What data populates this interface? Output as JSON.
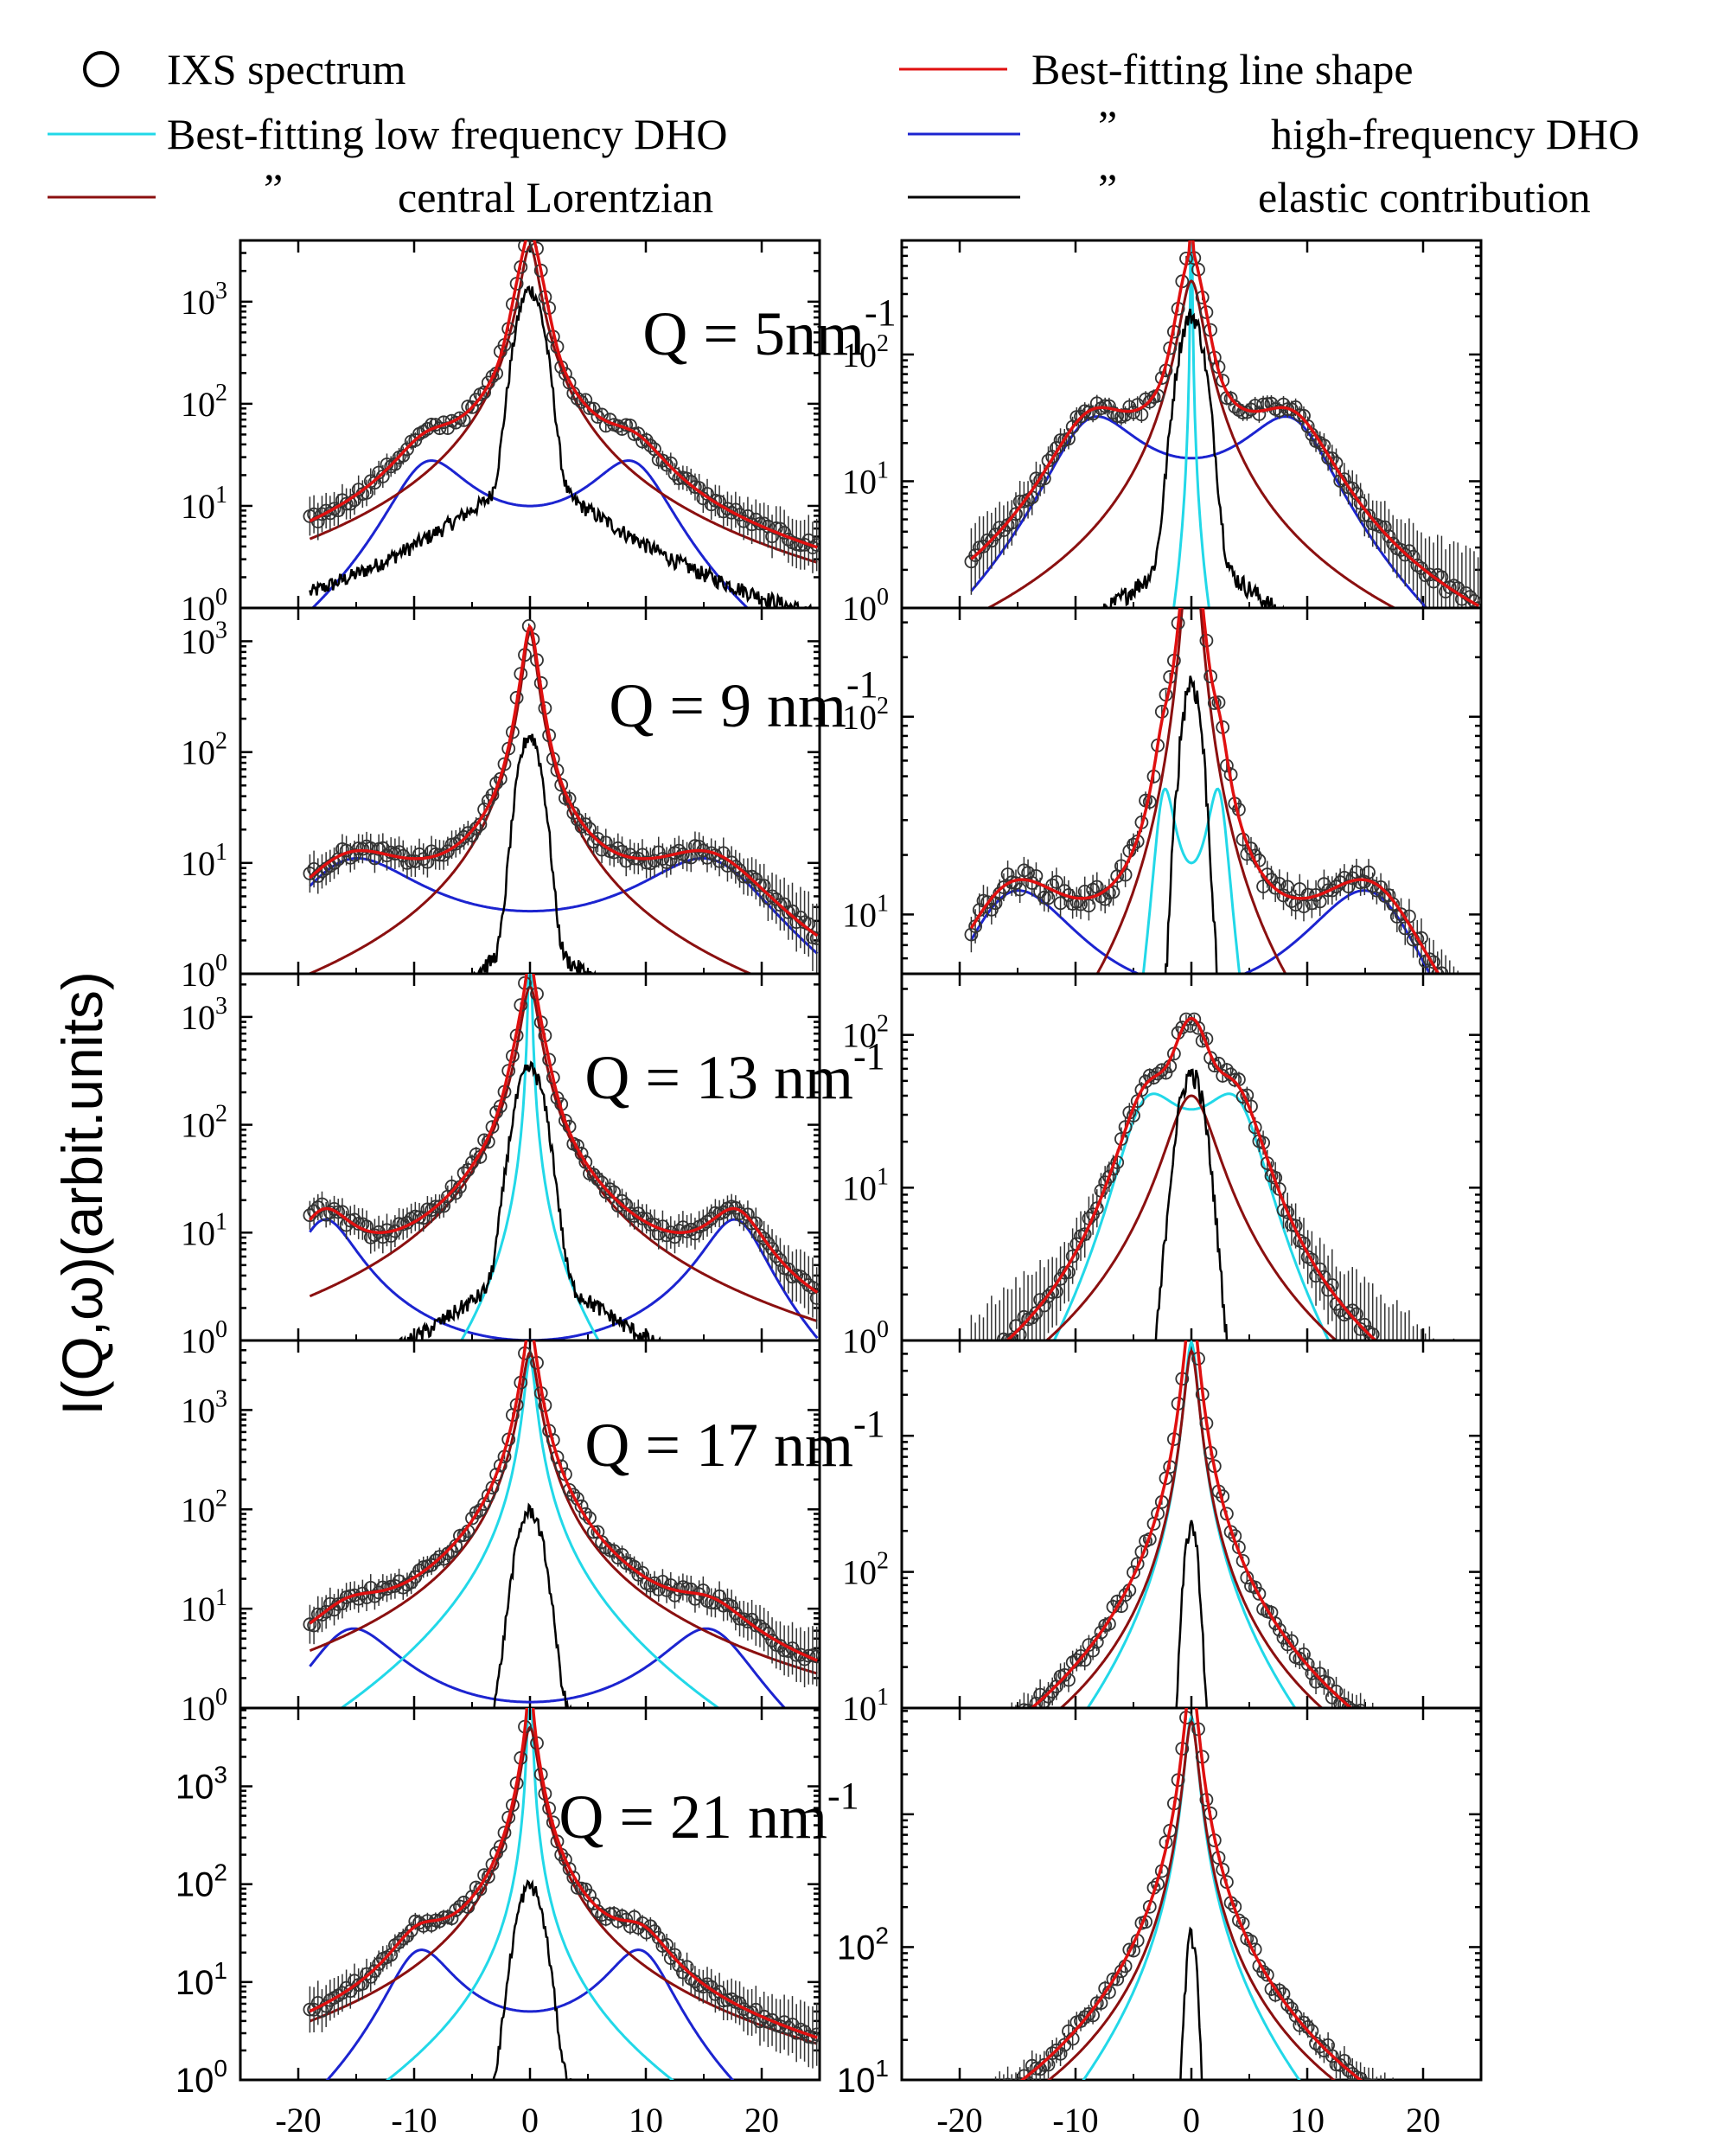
{
  "chart_data": {
    "type": "line",
    "ylabel": "I(Q,ω)(arbit.units)",
    "xlabel": "",
    "x_ticks": [
      -20,
      -10,
      0,
      10,
      20
    ],
    "x_tick_labels": [
      "-20",
      "-10",
      "0",
      "10",
      "20"
    ],
    "xlim": [
      -25,
      25
    ],
    "legend": [
      {
        "label": "IXS spectrum",
        "color": "#000000",
        "style": "circle"
      },
      {
        "label": "Best-fitting line shape",
        "color": "#e01010",
        "style": "line"
      },
      {
        "label": "Best-fitting low frequency DHO",
        "color": "#22d8e8",
        "style": "line"
      },
      {
        "label": "high-frequency DHO",
        "prefix": "”",
        "color": "#1c24d0",
        "style": "line"
      },
      {
        "label": "central Lorentzian",
        "prefix": "”",
        "color": "#8b1010",
        "style": "line"
      },
      {
        "label": "elastic contribution",
        "prefix": "”",
        "color": "#000000",
        "style": "line"
      }
    ],
    "rows": [
      {
        "q_text": "Q = 5nm",
        "q_sup": "-1",
        "left": {
          "ylim_exp": [
            0,
            3.6
          ],
          "y_tick_labels": [
            "10",
            "10",
            "10",
            "10"
          ],
          "y_tick_exps": [
            "0",
            "1",
            "2",
            "3"
          ],
          "models": {
            "elastic": {
              "a": 1300,
              "g": 0.9
            },
            "central": {
              "a": 3500,
              "g": 0.7
            },
            "low": null,
            "high": {
              "a": 25,
              "w": 9.5,
              "g": 3.0
            }
          }
        },
        "right": {
          "ylim_exp": [
            0,
            2.9
          ],
          "y_tick_labels": [
            "10",
            "10",
            "10"
          ],
          "y_tick_exps": [
            "0",
            "1",
            "2"
          ],
          "models": {
            "elastic": {
              "a": 200,
              "g": 0.9
            },
            "central": {
              "a": 380,
              "g": 0.9
            },
            "low": {
              "a": 300,
              "w": 0.1,
              "g": 1.4
            },
            "high": {
              "a": 28,
              "w": 9.5,
              "g": 3.5
            }
          }
        }
      },
      {
        "q_text": "Q = 9 nm",
        "q_sup": "-1",
        "left": {
          "ylim_exp": [
            0,
            3.3
          ],
          "y_tick_labels": [
            "10",
            "10",
            "10",
            "10"
          ],
          "y_tick_exps": [
            "0",
            "1",
            "2",
            "3"
          ],
          "models": {
            "elastic": {
              "a": 140,
              "g": 0.8
            },
            "central": {
              "a": 1200,
              "g": 0.55
            },
            "low": null,
            "high": {
              "a": 10,
              "w": 16.5,
              "g": 5.0
            }
          }
        },
        "right": {
          "ylim_exp": [
            0.7,
            2.55
          ],
          "y_tick_labels": [
            "10",
            "10"
          ],
          "y_tick_exps": [
            "1",
            "2"
          ],
          "models": {
            "elastic": {
              "a": 150,
              "g": 0.8
            },
            "central": {
              "a": 1100,
              "g": 0.55
            },
            "low": {
              "a": 38,
              "w": 2.6,
              "g": 0.9
            },
            "high": {
              "a": 12,
              "w": 16.5,
              "g": 5.0
            }
          }
        }
      },
      {
        "q_text": "Q = 13 nm",
        "q_sup": "-1",
        "left": {
          "ylim_exp": [
            0,
            3.4
          ],
          "y_tick_labels": [
            "10",
            "10",
            "10",
            "10"
          ],
          "y_tick_exps": [
            "0",
            "1",
            "2",
            "3"
          ],
          "models": {
            "elastic": {
              "a": 330,
              "g": 1.0
            },
            "central": {
              "a": 1900,
              "g": 0.7
            },
            "low": {
              "a": 200,
              "w": 0.5,
              "g": 4.5
            },
            "high": {
              "a": 13,
              "w": 18.0,
              "g": 2.5
            }
          }
        },
        "right": {
          "ylim_exp": [
            0,
            2.4
          ],
          "y_tick_labels": [
            "10",
            "10",
            "10"
          ],
          "y_tick_exps": [
            "0",
            "1",
            "2"
          ],
          "models": {
            "elastic": {
              "a": 55,
              "g": 1.0
            },
            "central": {
              "a": 40,
              "g": 2.0
            },
            "low": {
              "a": 30,
              "w": 4.8,
              "g": 2.5
            },
            "high": null
          }
        }
      },
      {
        "q_text": "Q = 17 nm",
        "q_sup": "-1",
        "left": {
          "ylim_exp": [
            0,
            3.7
          ],
          "y_tick_labels": [
            "10",
            "10",
            "10",
            "10"
          ],
          "y_tick_exps": [
            "0",
            "1",
            "2",
            "3"
          ],
          "models": {
            "elastic": {
              "a": 95,
              "g": 0.9
            },
            "central": {
              "a": 3800,
              "g": 0.6
            },
            "low": {
              "a": 90,
              "w": 2.5,
              "g": 7.5
            },
            "high": {
              "a": 6,
              "w": 16.0,
              "g": 3.5
            }
          }
        },
        "right": {
          "ylim_exp": [
            1,
            3.7
          ],
          "y_tick_labels": [
            "10",
            "10"
          ],
          "y_tick_exps": [
            "1",
            "2"
          ],
          "models": {
            "elastic": {
              "a": 220,
              "g": 0.5
            },
            "central": {
              "a": 4200,
              "g": 0.55
            },
            "low": {
              "a": 180,
              "w": 2.5,
              "g": 6.5
            },
            "high": null
          }
        }
      },
      {
        "q_text": "Q = 21 nm",
        "q_sup": "-1",
        "left": {
          "ylim_exp": [
            0,
            3.8
          ],
          "y_tick_labels": [
            "10",
            "10",
            "10",
            "10"
          ],
          "y_tick_exps": [
            "0",
            "1",
            "2",
            "3"
          ],
          "models": {
            "elastic": {
              "a": 95,
              "g": 0.9
            },
            "central": {
              "a": 4000,
              "g": 0.6
            },
            "low": {
              "a": 220,
              "w": 1.0,
              "g": 9.0
            },
            "high": {
              "a": 20,
              "w": 10.0,
              "g": 2.5
            }
          }
        },
        "right": {
          "ylim_exp": [
            1,
            3.8
          ],
          "y_tick_labels": [
            "10",
            "10"
          ],
          "y_tick_exps": [
            "1",
            "2"
          ],
          "models": {
            "elastic": {
              "a": 120,
              "g": 0.4
            },
            "central": {
              "a": 5000,
              "g": 0.55
            },
            "low": {
              "a": 200,
              "w": 2.5,
              "g": 6.5
            },
            "high": null
          }
        }
      }
    ]
  }
}
